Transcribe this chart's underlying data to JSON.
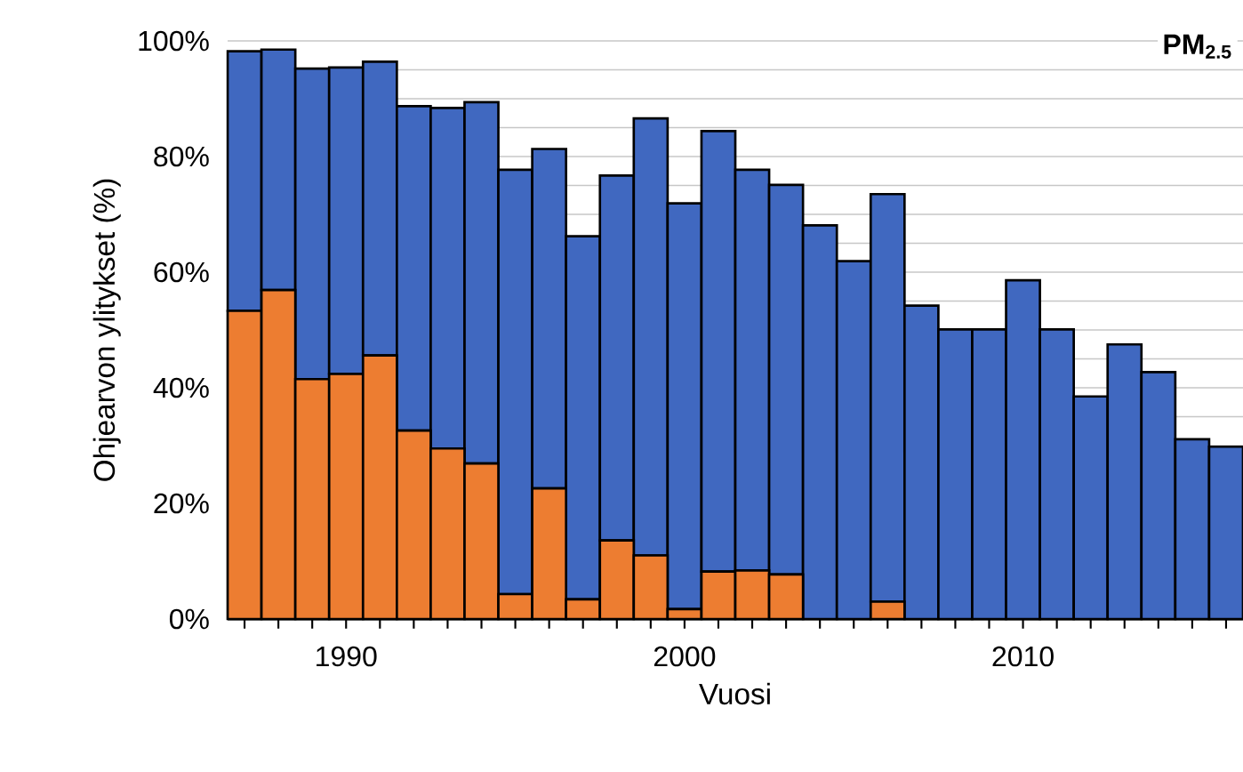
{
  "chart_data": {
    "type": "bar",
    "stacked": true,
    "xlabel": "Vuosi",
    "ylabel": "Ohjearvon ylitykset (%)",
    "annotations": [
      "PM$_{2.5}$"
    ],
    "x": [
      1987,
      1988,
      1989,
      1990,
      1991,
      1992,
      1993,
      1994,
      1995,
      1996,
      1997,
      1998,
      1999,
      2000,
      2001,
      2002,
      2003,
      2004,
      2005,
      2006,
      2007,
      2008,
      2009,
      2010,
      2011,
      2012,
      2013,
      2014,
      2015,
      2016
    ],
    "series": [
      {
        "color": "#ed7d31",
        "values": [
          53.3,
          56.9,
          41.5,
          42.4,
          45.6,
          32.6,
          29.5,
          26.9,
          4.3,
          22.6,
          3.4,
          13.6,
          11.0,
          1.7,
          8.2,
          8.4,
          7.7,
          null,
          null,
          3.0,
          null,
          null,
          null,
          null,
          null,
          null,
          null,
          null,
          null,
          null
        ]
      },
      {
        "color": "#4068c0",
        "values": [
          44.9,
          41.6,
          53.7,
          53.0,
          50.8,
          56.1,
          58.9,
          62.5,
          73.4,
          58.7,
          62.8,
          63.1,
          75.6,
          70.2,
          76.2,
          69.3,
          67.4,
          68.1,
          61.9,
          70.5,
          54.2,
          50.1,
          50.1,
          58.6,
          50.1,
          38.5,
          47.5,
          42.7,
          31.1,
          29.8
        ]
      }
    ],
    "xlim": [
      1986.5,
      2016.5
    ],
    "xticks": [
      {
        "value": 1987,
        "label": null
      },
      {
        "value": 1988,
        "label": null
      },
      {
        "value": 1989,
        "label": null
      },
      1990,
      {
        "value": 1991,
        "label": null
      },
      {
        "value": 1992,
        "label": null
      },
      {
        "value": 1993,
        "label": null
      },
      {
        "value": 1994,
        "label": null
      },
      {
        "value": 1995,
        "label": null
      },
      {
        "value": 1996,
        "label": null
      },
      {
        "value": 1997,
        "label": null
      },
      {
        "value": 1998,
        "label": null
      },
      {
        "value": 1999,
        "label": null
      },
      2000,
      {
        "value": 2001,
        "label": null
      },
      {
        "value": 2002,
        "label": null
      },
      {
        "value": 2003,
        "label": null
      },
      {
        "value": 2004,
        "label": null
      },
      {
        "value": 2005,
        "label": null
      },
      {
        "value": 2006,
        "label": null
      },
      {
        "value": 2007,
        "label": null
      },
      {
        "value": 2008,
        "label": null
      },
      {
        "value": 2009,
        "label": null
      },
      2010,
      {
        "value": 2011,
        "label": null
      },
      {
        "value": 2012,
        "label": null
      },
      {
        "value": 2013,
        "label": null
      },
      {
        "value": 2014,
        "label": null
      },
      {
        "value": 2015,
        "label": null
      },
      {
        "value": 2016,
        "label": null
      }
    ],
    "ylim": [
      0,
      100
    ],
    "yticks": [
      {
        "value": 0,
        "label": "0%"
      },
      {
        "value": 5,
        "label": null
      },
      {
        "value": 10,
        "label": null
      },
      {
        "value": 15,
        "label": null
      },
      {
        "value": 20,
        "label": "20%"
      },
      {
        "value": 25,
        "label": null
      },
      {
        "value": 30,
        "label": null
      },
      {
        "value": 35,
        "label": null
      },
      {
        "value": 40,
        "label": "40%"
      },
      {
        "value": 45,
        "label": null
      },
      {
        "value": 50,
        "label": null
      },
      {
        "value": 55,
        "label": null
      },
      {
        "value": 60,
        "label": "60%"
      },
      {
        "value": 65,
        "label": null
      },
      {
        "value": 70,
        "label": null
      },
      {
        "value": 75,
        "label": null
      },
      {
        "value": 80,
        "label": "80%"
      },
      {
        "value": 85,
        "label": null
      },
      {
        "value": 90,
        "label": null
      },
      {
        "value": 95,
        "label": null
      },
      {
        "value": 100,
        "label": "100%"
      }
    ],
    "grid": "y"
  }
}
